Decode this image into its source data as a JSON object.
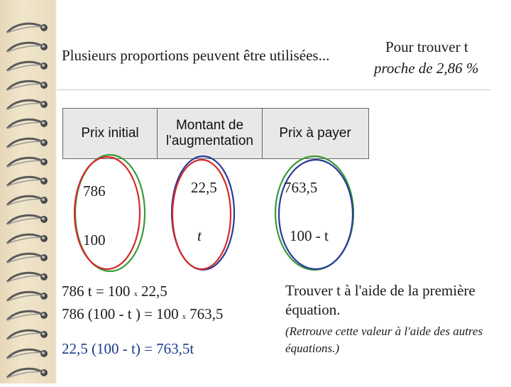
{
  "title": {
    "left": "Plusieurs proportions peuvent être utilisées...",
    "right_line1": "Pour trouver t",
    "right_line2": "proche de 2,86 %"
  },
  "table": {
    "headers": [
      "Prix initial",
      "Montant de l'augmentation",
      "Prix à payer"
    ],
    "rows": [
      [
        "786",
        "22,5",
        "763,5"
      ],
      [
        "100",
        "t",
        "100 - t"
      ]
    ]
  },
  "equations": [
    {
      "left": "786 t = 100",
      "op": "x",
      "right": "22,5"
    },
    {
      "left": "786 (100 - t ) = 100",
      "op": "x",
      "right": "763,5"
    },
    {
      "left": "22,5 (100 - t) = 763,5t"
    }
  ],
  "notes": {
    "main": "Trouver t à l'aide de la première équation.",
    "sub": "(Retrouve cette valeur à l'aide des autres équations.)"
  },
  "colors": {
    "ellipse_green": "#3a9a3a",
    "ellipse_red": "#d42a2a",
    "ellipse_blue": "#2a3a9a",
    "equation_blue": "#1a3a8c"
  }
}
